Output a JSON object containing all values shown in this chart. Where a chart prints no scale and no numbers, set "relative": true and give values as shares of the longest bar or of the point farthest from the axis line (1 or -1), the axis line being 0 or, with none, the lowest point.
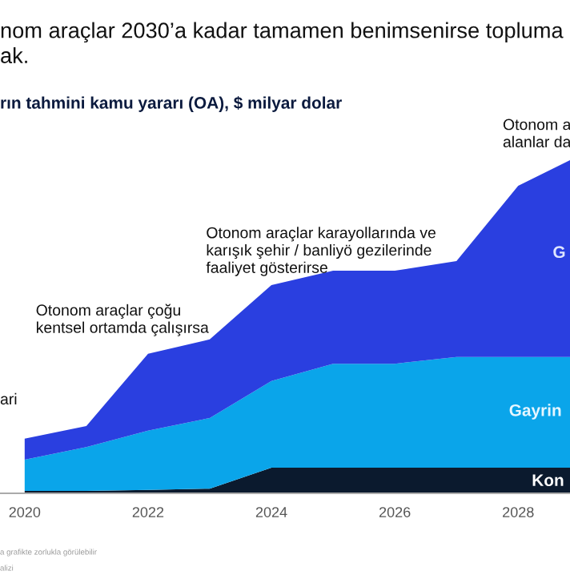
{
  "chart_data": {
    "type": "area",
    "stacked": true,
    "relative": true,
    "title": "nom araçlar 2030’a kadar tamamen benimsenirse topluma\nak.",
    "subtitle": "rın tahmini kamu yararı (OA), $ milyar dolar",
    "x": [
      2020,
      2021,
      2022,
      2023,
      2024,
      2025,
      2026,
      2027,
      2028,
      2028.84
    ],
    "xlim": [
      2019.6,
      2028.84
    ],
    "xticks": [
      2020,
      2022,
      2024,
      2026,
      2028
    ],
    "series": [
      {
        "name": "Kon",
        "color": "#0b1a2e",
        "values": [
          0.007,
          0.007,
          0.01,
          0.014,
          0.077,
          0.077,
          0.077,
          0.077,
          0.077,
          0.077
        ]
      },
      {
        "name": "Gayrin",
        "color": "#0aa5ea",
        "values": [
          0.094,
          0.132,
          0.178,
          0.212,
          0.26,
          0.312,
          0.312,
          0.332,
          0.332,
          0.332
        ]
      },
      {
        "name": "G",
        "color": "#2a3fe0",
        "values": [
          0.063,
          0.063,
          0.231,
          0.236,
          0.288,
          0.279,
          0.279,
          0.288,
          0.514,
          0.591
        ]
      }
    ],
    "annotations": [
      "ari",
      "Otonom araçlar çoğu\nkentsel ortamda çalışırsa",
      "Otonom araçlar karayollarında ve\nkarışık şehir / banliyö gezilerinde\nfaaliyet gösterirse",
      "Otonom a\nalanlar da",
      "a grafikte zorlukla görülebilir",
      "alizi"
    ],
    "grid": false,
    "legend": false
  }
}
